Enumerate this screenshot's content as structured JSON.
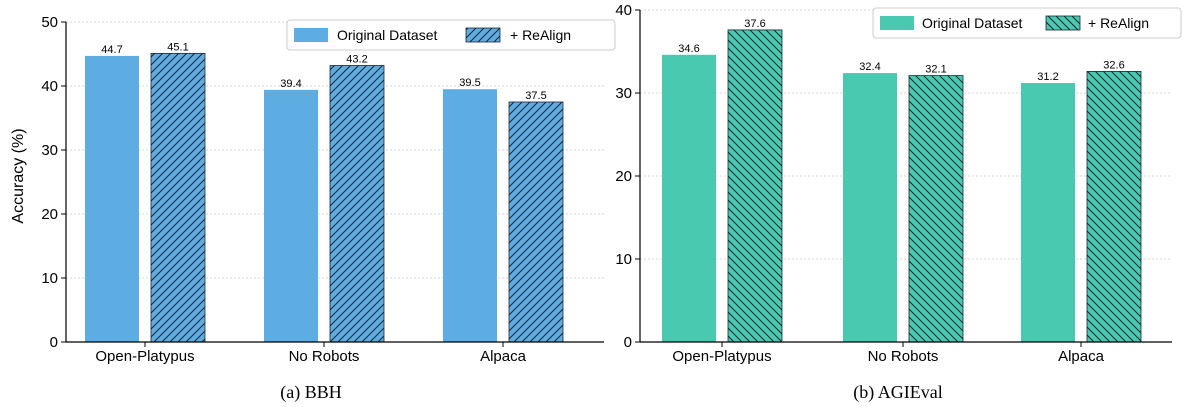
{
  "legend": {
    "original": "Original Dataset",
    "realign": "+ ReAlign"
  },
  "colors": {
    "bbh": "#5dade2",
    "agieval": "#48c9b0"
  },
  "chart_data": [
    {
      "type": "bar",
      "caption": "(a)  BBH",
      "ylabel": "Accuracy (%)",
      "ylim": [
        0,
        50
      ],
      "yticks": [
        0,
        10,
        20,
        30,
        40,
        50
      ],
      "grid": true,
      "legend_position": "top-right",
      "categories": [
        "Open-Platypus",
        "No Robots",
        "Alpaca"
      ],
      "series": [
        {
          "name": "Original Dataset",
          "values": [
            44.7,
            39.4,
            39.5
          ],
          "labels": [
            "44.7",
            "39.4",
            "39.5"
          ]
        },
        {
          "name": "+ ReAlign",
          "values": [
            45.1,
            43.2,
            37.5
          ],
          "labels": [
            "45.1",
            "43.2",
            "37.5"
          ]
        }
      ]
    },
    {
      "type": "bar",
      "caption": "(b)  AGIEval",
      "ylabel": "",
      "ylim": [
        0,
        40
      ],
      "yticks": [
        0,
        10,
        20,
        30,
        40
      ],
      "grid": true,
      "legend_position": "top-right",
      "categories": [
        "Open-Platypus",
        "No Robots",
        "Alpaca"
      ],
      "series": [
        {
          "name": "Original Dataset",
          "values": [
            34.6,
            32.4,
            31.2
          ],
          "labels": [
            "34.6",
            "32.4",
            "31.2"
          ]
        },
        {
          "name": "+ ReAlign",
          "values": [
            37.6,
            32.1,
            32.6
          ],
          "labels": [
            "37.6",
            "32.1",
            "32.6"
          ]
        }
      ]
    }
  ]
}
